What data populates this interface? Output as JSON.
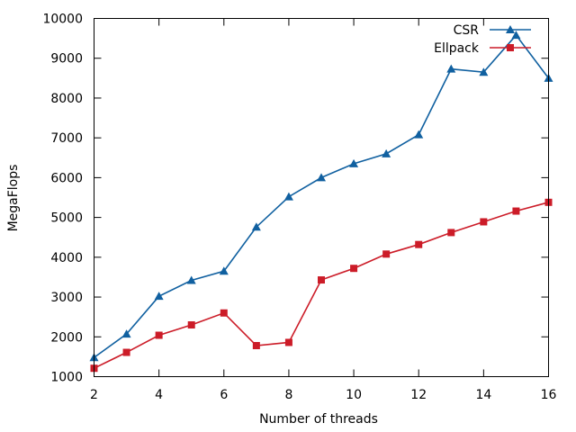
{
  "chart_data": {
    "type": "line",
    "xlabel": "Number of threads",
    "ylabel": "MegaFlops",
    "xlim": [
      2,
      16
    ],
    "ylim": [
      1000,
      10000
    ],
    "xticks": [
      2,
      4,
      6,
      8,
      10,
      12,
      14,
      16
    ],
    "yticks": [
      1000,
      2000,
      3000,
      4000,
      5000,
      6000,
      7000,
      8000,
      9000,
      10000
    ],
    "grid": false,
    "legend": "top-right",
    "x": [
      2,
      3,
      4,
      5,
      6,
      7,
      8,
      9,
      10,
      11,
      12,
      13,
      14,
      15,
      16
    ],
    "series": [
      {
        "name": "CSR",
        "color": "#1060a0",
        "marker": "triangle",
        "values": [
          1480,
          2070,
          3020,
          3420,
          3650,
          4760,
          5520,
          6000,
          6350,
          6600,
          7080,
          8730,
          8650,
          9580,
          8500
        ]
      },
      {
        "name": "Ellpack",
        "color": "#cc1c28",
        "marker": "square",
        "values": [
          1210,
          1610,
          2040,
          2300,
          2600,
          1780,
          1860,
          3430,
          3720,
          4080,
          4320,
          4620,
          4890,
          5160,
          5380
        ]
      }
    ]
  }
}
